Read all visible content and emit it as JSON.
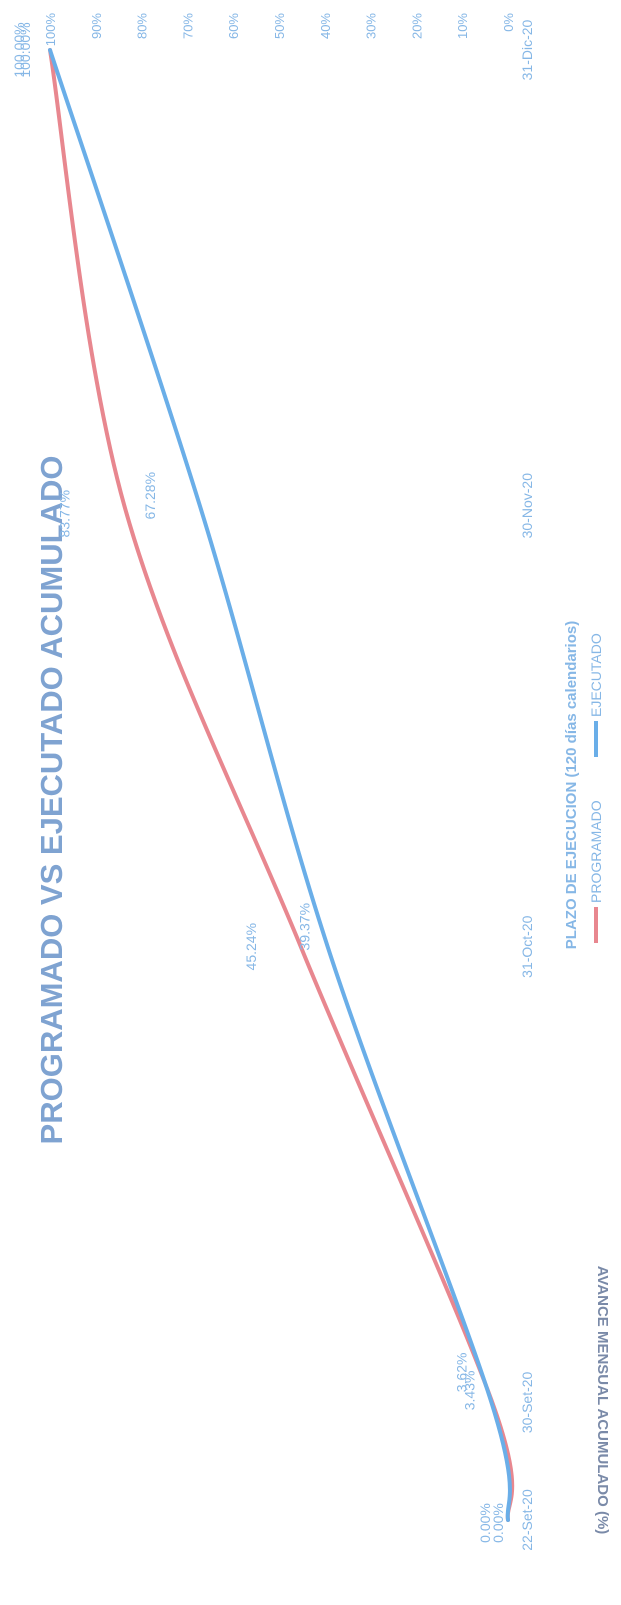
{
  "chart_data": {
    "type": "line",
    "title": "PROGRAMADO VS EJECUTADO ACUMULADO",
    "xlabel": "PLAZO DE EJECUCION (120 días calendarios)",
    "ylabel": "AVANCE MENSUAL ACUMULADO (%)",
    "x_ticks": [
      "22-Set-20",
      "30-Set-20",
      "31-Oct-20",
      "30-Nov-20",
      "31-Dic-20"
    ],
    "y_ticks": [
      "0%",
      "10%",
      "20%",
      "30%",
      "40%",
      "50%",
      "60%",
      "70%",
      "80%",
      "90%",
      "100%"
    ],
    "ylim": [
      0,
      100
    ],
    "x": [
      "22-Set-20",
      "30-Set-20",
      "31-Oct-20",
      "30-Nov-20",
      "31-Dic-20"
    ],
    "series": [
      {
        "name": "PROGRAMADO",
        "color": "#e8878f",
        "values": [
          0.0,
          3.43,
          45.24,
          83.77,
          100.0
        ],
        "labels": [
          "0.00%",
          "3.43%",
          "45.24%",
          "83.77%",
          "100.00%"
        ]
      },
      {
        "name": "EJECUTADO",
        "color": "#6aaee8",
        "values": [
          0.0,
          3.62,
          39.37,
          67.28,
          100.0
        ],
        "labels": [
          "0.00%",
          "3.62%",
          "39.37%",
          "67.28%",
          "100.00%"
        ]
      }
    ],
    "grid": false,
    "legend_position": "bottom"
  },
  "colors": {
    "title": "#7fa3d1",
    "axis_text": "#86b7e6",
    "ylabel": "#7a8aa8"
  }
}
